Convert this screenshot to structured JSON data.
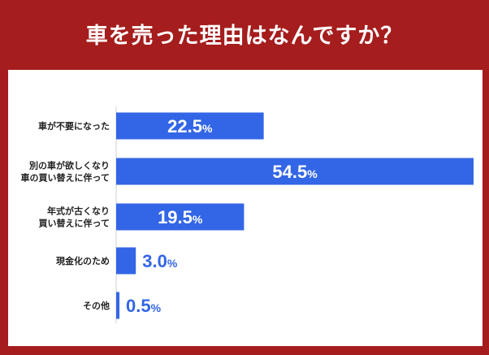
{
  "title": "車を売った理由はなんですか？",
  "colors": {
    "frame": "#a51d1d",
    "bar": "#3366e6",
    "value_inside": "#ffffff",
    "value_outside": "#3366e6",
    "axis": "#cfcfcf"
  },
  "chart_data": {
    "type": "bar",
    "orientation": "horizontal",
    "unit": "%",
    "categories": [
      [
        "車が不要になった"
      ],
      [
        "別の車が欲しくなり",
        "車の買い替えに伴って"
      ],
      [
        "年式が古くなり",
        "買い替えに伴って"
      ],
      [
        "現金化のため"
      ],
      [
        "その他"
      ]
    ],
    "values": [
      22.5,
      54.5,
      19.5,
      3.0,
      0.5
    ],
    "value_labels": [
      "22.5",
      "54.5",
      "19.5",
      "3.0",
      "0.5"
    ],
    "xlim": [
      0,
      54.5
    ],
    "grid": false
  }
}
